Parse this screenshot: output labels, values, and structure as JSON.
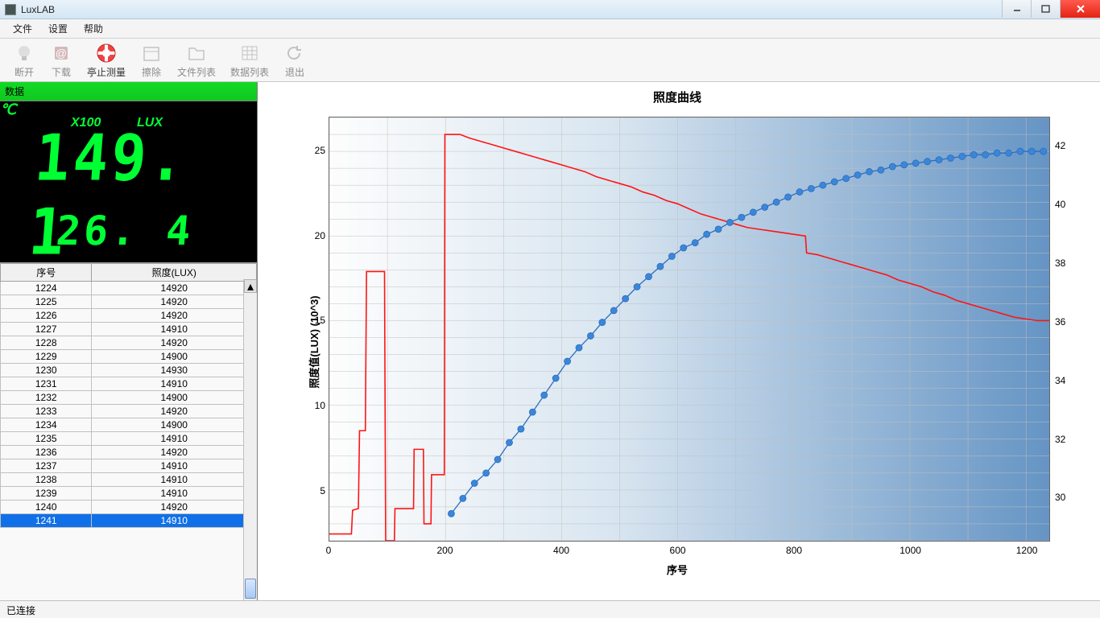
{
  "window": {
    "title": "LuxLAB"
  },
  "menu": {
    "file": "文件",
    "settings": "设置",
    "help": "帮助"
  },
  "toolbar": {
    "disconnect": "断开",
    "download": "下载",
    "stop_measure": "亭止测量",
    "erase": "擦除",
    "file_list": "文件列表",
    "data_list": "数据列表",
    "exit": "退出"
  },
  "datapanel": {
    "header": "数据",
    "x100": "X100",
    "lux": "LUX",
    "reading": "149. 1",
    "temp": "26. 4",
    "celsius": "℃"
  },
  "table": {
    "col_seq": "序号",
    "col_lux": "照度(LUX)",
    "rows": [
      {
        "seq": "1224",
        "lux": "14920"
      },
      {
        "seq": "1225",
        "lux": "14920"
      },
      {
        "seq": "1226",
        "lux": "14920"
      },
      {
        "seq": "1227",
        "lux": "14910"
      },
      {
        "seq": "1228",
        "lux": "14920"
      },
      {
        "seq": "1229",
        "lux": "14900"
      },
      {
        "seq": "1230",
        "lux": "14930"
      },
      {
        "seq": "1231",
        "lux": "14910"
      },
      {
        "seq": "1232",
        "lux": "14900"
      },
      {
        "seq": "1233",
        "lux": "14920"
      },
      {
        "seq": "1234",
        "lux": "14900"
      },
      {
        "seq": "1235",
        "lux": "14910"
      },
      {
        "seq": "1236",
        "lux": "14920"
      },
      {
        "seq": "1237",
        "lux": "14910"
      },
      {
        "seq": "1238",
        "lux": "14910"
      },
      {
        "seq": "1239",
        "lux": "14910"
      },
      {
        "seq": "1240",
        "lux": "14920"
      },
      {
        "seq": "1241",
        "lux": "14910"
      }
    ],
    "selected_index": 17
  },
  "chart": {
    "title": "照度曲线",
    "xlabel": "序号",
    "ylabel": "照度值(LUX)   (10^3)",
    "xlim": [
      0,
      1240
    ],
    "ylim": [
      2,
      27
    ],
    "y2lim": [
      28.5,
      43
    ],
    "xtick_step": 200,
    "yticks": [
      5,
      10,
      15,
      20,
      25
    ],
    "y2ticks": [
      30,
      32,
      34,
      36,
      38,
      40,
      42
    ],
    "grid_color": "#c0c0c0",
    "background_gradient": [
      "#fdfdfd",
      "#6594c4"
    ],
    "series_blue": {
      "color": "#2a6dc0",
      "marker_fill": "#3c86d8",
      "marker_r": 4,
      "points": [
        [
          210,
          3.6
        ],
        [
          230,
          4.5
        ],
        [
          250,
          5.4
        ],
        [
          270,
          6.0
        ],
        [
          290,
          6.8
        ],
        [
          310,
          7.8
        ],
        [
          330,
          8.6
        ],
        [
          350,
          9.6
        ],
        [
          370,
          10.6
        ],
        [
          390,
          11.6
        ],
        [
          410,
          12.6
        ],
        [
          430,
          13.4
        ],
        [
          450,
          14.1
        ],
        [
          470,
          14.9
        ],
        [
          490,
          15.6
        ],
        [
          510,
          16.3
        ],
        [
          530,
          17.0
        ],
        [
          550,
          17.6
        ],
        [
          570,
          18.2
        ],
        [
          590,
          18.8
        ],
        [
          610,
          19.3
        ],
        [
          630,
          19.6
        ],
        [
          650,
          20.1
        ],
        [
          670,
          20.4
        ],
        [
          690,
          20.8
        ],
        [
          710,
          21.1
        ],
        [
          730,
          21.4
        ],
        [
          750,
          21.7
        ],
        [
          770,
          22.0
        ],
        [
          790,
          22.3
        ],
        [
          810,
          22.6
        ],
        [
          830,
          22.8
        ],
        [
          850,
          23.0
        ],
        [
          870,
          23.2
        ],
        [
          890,
          23.4
        ],
        [
          910,
          23.6
        ],
        [
          930,
          23.8
        ],
        [
          950,
          23.9
        ],
        [
          970,
          24.1
        ],
        [
          990,
          24.2
        ],
        [
          1010,
          24.3
        ],
        [
          1030,
          24.4
        ],
        [
          1050,
          24.5
        ],
        [
          1070,
          24.6
        ],
        [
          1090,
          24.7
        ],
        [
          1110,
          24.8
        ],
        [
          1130,
          24.8
        ],
        [
          1150,
          24.9
        ],
        [
          1170,
          24.9
        ],
        [
          1190,
          25.0
        ],
        [
          1210,
          25.0
        ],
        [
          1230,
          25.0
        ]
      ]
    },
    "series_red": {
      "color": "#ff1414",
      "width": 1.6,
      "points": [
        [
          0,
          2.4
        ],
        [
          38,
          2.4
        ],
        [
          40,
          3.8
        ],
        [
          50,
          3.9
        ],
        [
          52,
          8.5
        ],
        [
          62,
          8.5
        ],
        [
          64,
          17.9
        ],
        [
          95,
          17.9
        ],
        [
          97,
          2
        ],
        [
          112,
          2
        ],
        [
          113,
          3.9
        ],
        [
          145,
          3.9
        ],
        [
          146,
          7.4
        ],
        [
          162,
          7.4
        ],
        [
          163,
          3
        ],
        [
          175,
          3
        ],
        [
          176,
          5.9
        ],
        [
          198,
          5.9
        ],
        [
          199,
          26.0
        ],
        [
          225,
          26.0
        ],
        [
          240,
          25.8
        ],
        [
          260,
          25.6
        ],
        [
          280,
          25.4
        ],
        [
          300,
          25.2
        ],
        [
          320,
          25.0
        ],
        [
          340,
          24.8
        ],
        [
          360,
          24.6
        ],
        [
          380,
          24.4
        ],
        [
          400,
          24.2
        ],
        [
          420,
          24.0
        ],
        [
          440,
          23.8
        ],
        [
          460,
          23.5
        ],
        [
          480,
          23.3
        ],
        [
          500,
          23.1
        ],
        [
          520,
          22.9
        ],
        [
          540,
          22.6
        ],
        [
          560,
          22.4
        ],
        [
          580,
          22.1
        ],
        [
          600,
          21.9
        ],
        [
          620,
          21.6
        ],
        [
          640,
          21.3
        ],
        [
          660,
          21.1
        ],
        [
          680,
          20.9
        ],
        [
          700,
          20.7
        ],
        [
          720,
          20.5
        ],
        [
          740,
          20.4
        ],
        [
          760,
          20.3
        ],
        [
          780,
          20.2
        ],
        [
          800,
          20.1
        ],
        [
          820,
          20.0
        ],
        [
          822,
          19.0
        ],
        [
          840,
          18.9
        ],
        [
          860,
          18.7
        ],
        [
          880,
          18.5
        ],
        [
          900,
          18.3
        ],
        [
          920,
          18.1
        ],
        [
          940,
          17.9
        ],
        [
          960,
          17.7
        ],
        [
          980,
          17.4
        ],
        [
          1000,
          17.2
        ],
        [
          1020,
          17.0
        ],
        [
          1040,
          16.7
        ],
        [
          1060,
          16.5
        ],
        [
          1080,
          16.2
        ],
        [
          1100,
          16.0
        ],
        [
          1120,
          15.8
        ],
        [
          1140,
          15.6
        ],
        [
          1160,
          15.4
        ],
        [
          1180,
          15.2
        ],
        [
          1200,
          15.1
        ],
        [
          1220,
          15.0
        ],
        [
          1240,
          15.0
        ]
      ]
    }
  },
  "status": {
    "connected": "已连接"
  }
}
